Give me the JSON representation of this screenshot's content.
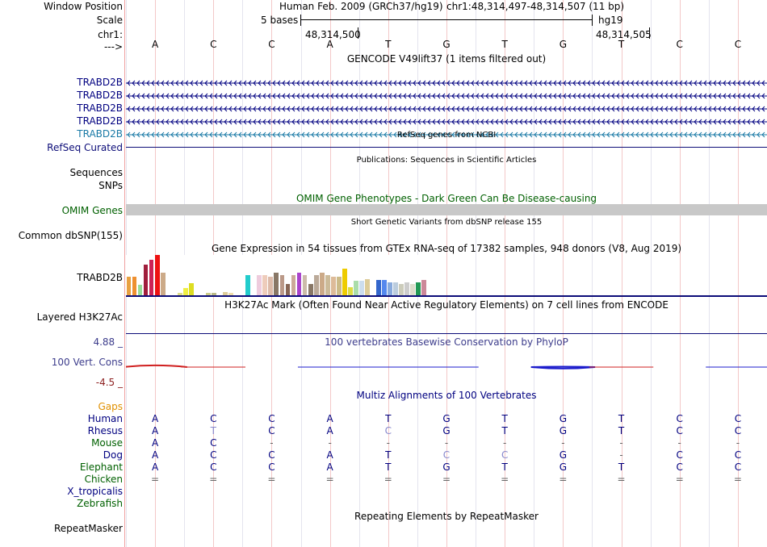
{
  "header": {
    "window_position_label": "Window Position",
    "scale_label": "Scale",
    "chrom_label": "chr1:",
    "arrow_label": "--->",
    "assembly_text": "Human Feb. 2009 (GRCh37/hg19)",
    "position_text": "chr1:48,314,497-48,314,507 (11 bp)",
    "scale_text": "5 bases",
    "db_text": "hg19",
    "coord_left": "48,314,500",
    "coord_right": "48,314,505"
  },
  "bases": [
    "A",
    "C",
    "C",
    "A",
    "T",
    "G",
    "T",
    "G",
    "T",
    "C",
    "C"
  ],
  "tracks": {
    "gencode": {
      "title": "GENCODE V49lift37 (1 items filtered out)",
      "items": [
        "TRABD2B",
        "TRABD2B",
        "TRABD2B",
        "TRABD2B",
        "TRABD2B"
      ]
    },
    "refseq": {
      "title": "RefSeq genes from NCBI",
      "label": "RefSeq Curated"
    },
    "publications": {
      "title": "Publications: Sequences in Scientific Articles",
      "labels": [
        "Sequences",
        "SNPs"
      ]
    },
    "omim": {
      "title": "OMIM Gene Phenotypes - Dark Green Can Be Disease-causing",
      "label": "OMIM Genes"
    },
    "dbsnp": {
      "title": "Short Genetic Variants from dbSNP release 155",
      "label": "Common dbSNP(155)"
    },
    "gtex": {
      "title": "Gene Expression in 54 tissues from GTEx RNA-seq of 17382 samples, 948 donors (V8, Aug 2019)",
      "label": "TRABD2B",
      "bars": [
        {
          "v": 0.45,
          "c": "#e8a040"
        },
        {
          "v": 0.45,
          "c": "#ee9030"
        },
        {
          "v": 0.25,
          "c": "#99dd99"
        },
        {
          "v": 0.75,
          "c": "#a01e3c"
        },
        {
          "v": 0.88,
          "c": "#cc2255"
        },
        {
          "v": 1.0,
          "c": "#ee1111"
        },
        {
          "v": 0.55,
          "c": "#ccaa88"
        },
        {
          "v": 0.0,
          "c": "#ffffff"
        },
        {
          "v": 0.0,
          "c": "#ffffff"
        },
        {
          "v": 0.05,
          "c": "#dddd88"
        },
        {
          "v": 0.18,
          "c": "#eeee44"
        },
        {
          "v": 0.3,
          "c": "#dddd22"
        },
        {
          "v": 0.0,
          "c": "#ffffff"
        },
        {
          "v": 0.0,
          "c": "#ffffff"
        },
        {
          "v": 0.05,
          "c": "#cccc88"
        },
        {
          "v": 0.05,
          "c": "#bbbb88"
        },
        {
          "v": 0.0,
          "c": "#ffffff"
        },
        {
          "v": 0.08,
          "c": "#ddcc99"
        },
        {
          "v": 0.05,
          "c": "#eeddaa"
        },
        {
          "v": 0.0,
          "c": "#ffffff"
        },
        {
          "v": 0.0,
          "c": "#ffffff"
        },
        {
          "v": 0.5,
          "c": "#22cccc"
        },
        {
          "v": 0.0,
          "c": "#ffffff"
        },
        {
          "v": 0.5,
          "c": "#eeccdd"
        },
        {
          "v": 0.5,
          "c": "#eeccbb"
        },
        {
          "v": 0.45,
          "c": "#ddbbaa"
        },
        {
          "v": 0.55,
          "c": "#887766"
        },
        {
          "v": 0.5,
          "c": "#bb9988"
        },
        {
          "v": 0.28,
          "c": "#886655"
        },
        {
          "v": 0.5,
          "c": "#ccaa99"
        },
        {
          "v": 0.55,
          "c": "#aa44cc"
        },
        {
          "v": 0.5,
          "c": "#ccbbaa"
        },
        {
          "v": 0.28,
          "c": "#887766"
        },
        {
          "v": 0.5,
          "c": "#bbaa99"
        },
        {
          "v": 0.55,
          "c": "#ccaa88"
        },
        {
          "v": 0.5,
          "c": "#ccbb99"
        },
        {
          "v": 0.45,
          "c": "#ddbb99"
        },
        {
          "v": 0.45,
          "c": "#ccbb88"
        },
        {
          "v": 0.65,
          "c": "#eecc00"
        },
        {
          "v": 0.2,
          "c": "#dddd44"
        },
        {
          "v": 0.35,
          "c": "#aaddaa"
        },
        {
          "v": 0.35,
          "c": "#ccddee"
        },
        {
          "v": 0.4,
          "c": "#ddcc99"
        },
        {
          "v": 0.0,
          "c": "#ffffff"
        },
        {
          "v": 0.38,
          "c": "#3366cc"
        },
        {
          "v": 0.38,
          "c": "#5588ee"
        },
        {
          "v": 0.32,
          "c": "#88aadd"
        },
        {
          "v": 0.32,
          "c": "#bbccdd"
        },
        {
          "v": 0.28,
          "c": "#ccccbb"
        },
        {
          "v": 0.32,
          "c": "#cccccc"
        },
        {
          "v": 0.28,
          "c": "#ddddcc"
        },
        {
          "v": 0.32,
          "c": "#229955"
        },
        {
          "v": 0.38,
          "c": "#cc8899"
        },
        {
          "v": 0.0,
          "c": "#ffffff"
        }
      ]
    },
    "h3k27ac": {
      "title": "H3K27Ac Mark (Often Found Near Active Regulatory Elements) on 7 cell lines from ENCODE",
      "label": "Layered H3K27Ac"
    },
    "phylop": {
      "title": "100 vertebrates Basewise Conservation by PhyloP",
      "label": "100 Vert. Cons",
      "max_label": "4.88 _",
      "min_label": "-4.5 _",
      "values": [
        0.7,
        0.05,
        0,
        -0.05,
        -0.02,
        -0.1,
        0,
        -0.6,
        0.03,
        0,
        -0.05
      ]
    },
    "multiz": {
      "title": "Multiz Alignments of 100 Vertebrates",
      "gaps_label": "Gaps",
      "species": [
        {
          "name": "Human",
          "color": "#000080",
          "seq": [
            "A",
            "C",
            "C",
            "A",
            "T",
            "G",
            "T",
            "G",
            "T",
            "C",
            "C"
          ]
        },
        {
          "name": "Rhesus",
          "color": "#000080",
          "seq": [
            "A",
            "T",
            "C",
            "A",
            "C",
            "G",
            "T",
            "G",
            "T",
            "C",
            "C"
          ]
        },
        {
          "name": "Mouse",
          "color": "#006000",
          "seq": [
            "A",
            "C",
            "-",
            "-",
            "-",
            "-",
            "-",
            "-",
            "-",
            "-",
            "-"
          ]
        },
        {
          "name": "Dog",
          "color": "#000080",
          "seq": [
            "A",
            "C",
            "C",
            "A",
            "T",
            "C",
            "C",
            "G",
            "-",
            "C",
            "C"
          ]
        },
        {
          "name": "Elephant",
          "color": "#006000",
          "seq": [
            "A",
            "C",
            "C",
            "A",
            "T",
            "G",
            "T",
            "G",
            "T",
            "C",
            "C"
          ]
        },
        {
          "name": "Chicken",
          "color": "#006000",
          "seq": [
            "=",
            "=",
            "=",
            "=",
            "=",
            "=",
            "=",
            "=",
            "=",
            "=",
            "="
          ]
        },
        {
          "name": "X_tropicalis",
          "color": "#000080",
          "seq": [
            "",
            "",
            "",
            "",
            "",
            "",
            "",
            "",
            "",
            "",
            ""
          ]
        },
        {
          "name": "Zebrafish",
          "color": "#006000",
          "seq": [
            "",
            "",
            "",
            "",
            "",
            "",
            "",
            "",
            "",
            "",
            ""
          ]
        }
      ],
      "mismatch_color": "#8888cc"
    },
    "repeatmasker": {
      "title": "Repeating Elements by RepeatMasker",
      "label": "RepeatMasker"
    }
  },
  "colors": {
    "gencode_dark": "#000080",
    "gencode_light": "#1a7aa6",
    "refseq": "#0c0c78",
    "omim_label": "#006000",
    "omim_bar": "#c8c8c8",
    "phylop_label": "#3d3d8c",
    "phylop_min": "#8c1e1e",
    "phylop_pos": "#d02020",
    "phylop_neg": "#1c1ccc",
    "gaps": "#e09000"
  }
}
